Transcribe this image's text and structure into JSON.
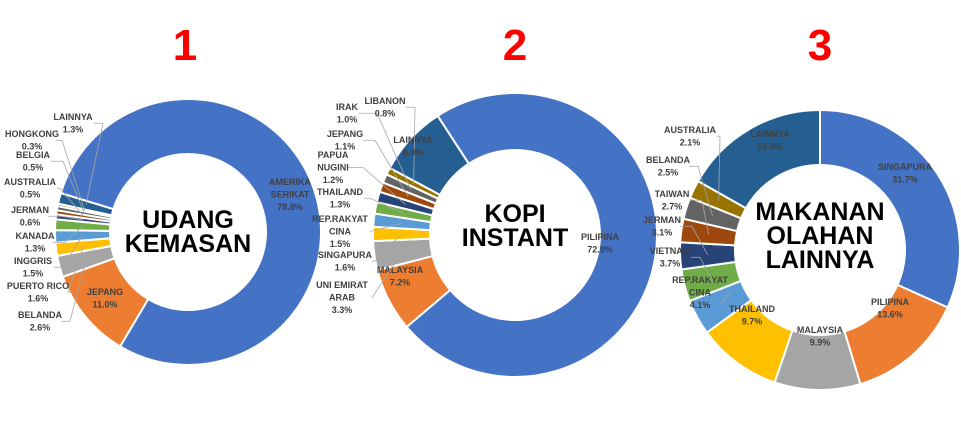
{
  "chart_data": [
    {
      "type": "pie",
      "variant": "donut",
      "title": "1",
      "center_label": [
        "UDANG",
        "KEMASAN"
      ],
      "slices": [
        {
          "label": [
            "AMERIKA",
            "SERIKAT"
          ],
          "value": 78.8,
          "color": "#4472C4"
        },
        {
          "label": [
            "JEPANG"
          ],
          "value": 11.0,
          "color": "#ED7D31"
        },
        {
          "label": [
            "BELANDA"
          ],
          "value": 2.6,
          "color": "#A5A5A5"
        },
        {
          "label": [
            "PUERTO RICO"
          ],
          "value": 1.6,
          "color": "#FFC000"
        },
        {
          "label": [
            "INGGRIS"
          ],
          "value": 1.5,
          "color": "#5B9BD5"
        },
        {
          "label": [
            "KANADA"
          ],
          "value": 1.3,
          "color": "#70AD47"
        },
        {
          "label": [
            "JERMAN"
          ],
          "value": 0.6,
          "color": "#264478"
        },
        {
          "label": [
            "AUSTRALIA"
          ],
          "value": 0.5,
          "color": "#9E480E"
        },
        {
          "label": [
            "BELGIA"
          ],
          "value": 0.5,
          "color": "#636363"
        },
        {
          "label": [
            "HONGKONG"
          ],
          "value": 0.3,
          "color": "#997300"
        },
        {
          "label": [
            "LAINNYA"
          ],
          "value": 1.3,
          "color": "#255E91"
        }
      ]
    },
    {
      "type": "pie",
      "variant": "donut",
      "title": "2",
      "center_label": [
        "KOPI",
        "INSTANT"
      ],
      "slices": [
        {
          "label": [
            "PILIPINA"
          ],
          "value": 72.9,
          "color": "#4472C4"
        },
        {
          "label": [
            "MALAYSIA"
          ],
          "value": 7.2,
          "color": "#ED7D31"
        },
        {
          "label": [
            "UNI EMIRAT",
            "ARAB"
          ],
          "value": 3.3,
          "color": "#A5A5A5"
        },
        {
          "label": [
            "SINGAPURA"
          ],
          "value": 1.6,
          "color": "#FFC000"
        },
        {
          "label": [
            "REP.RAKYAT",
            "CINA"
          ],
          "value": 1.5,
          "color": "#5B9BD5"
        },
        {
          "label": [
            "THAILAND"
          ],
          "value": 1.3,
          "color": "#70AD47"
        },
        {
          "label": [
            "PAPUA",
            "NUGINI"
          ],
          "value": 1.2,
          "color": "#264478"
        },
        {
          "label": [
            "JEPANG"
          ],
          "value": 1.1,
          "color": "#9E480E"
        },
        {
          "label": [
            "IRAK"
          ],
          "value": 1.0,
          "color": "#636363"
        },
        {
          "label": [
            "LIBANON"
          ],
          "value": 0.8,
          "color": "#997300"
        },
        {
          "label": [
            "LAINNYA"
          ],
          "value": 8.0,
          "color": "#255E91"
        }
      ]
    },
    {
      "type": "pie",
      "variant": "donut",
      "title": "3",
      "center_label": [
        "MAKANAN",
        "OLAHAN",
        "LAINNYA"
      ],
      "slices": [
        {
          "label": [
            "SINGAPURA"
          ],
          "value": 31.7,
          "color": "#4472C4"
        },
        {
          "label": [
            "PILIPINA"
          ],
          "value": 13.6,
          "color": "#ED7D31"
        },
        {
          "label": [
            "MALAYSIA"
          ],
          "value": 9.9,
          "color": "#A5A5A5"
        },
        {
          "label": [
            "THAILAND"
          ],
          "value": 9.7,
          "color": "#FFC000"
        },
        {
          "label": [
            "REP.RAKYAT",
            "CINA"
          ],
          "value": 4.1,
          "color": "#5B9BD5"
        },
        {
          "label": [
            "VIETNAM"
          ],
          "value": 3.7,
          "color": "#70AD47"
        },
        {
          "label": [
            "JERMAN"
          ],
          "value": 3.1,
          "color": "#264478"
        },
        {
          "label": [
            "TAIWAN"
          ],
          "value": 2.7,
          "color": "#9E480E"
        },
        {
          "label": [
            "BELANDA"
          ],
          "value": 2.5,
          "color": "#636363"
        },
        {
          "label": [
            "AUSTRALIA"
          ],
          "value": 2.1,
          "color": "#997300"
        },
        {
          "label": [
            "LAINNYA"
          ],
          "value": 16.8,
          "color": "#255E91"
        }
      ]
    }
  ]
}
